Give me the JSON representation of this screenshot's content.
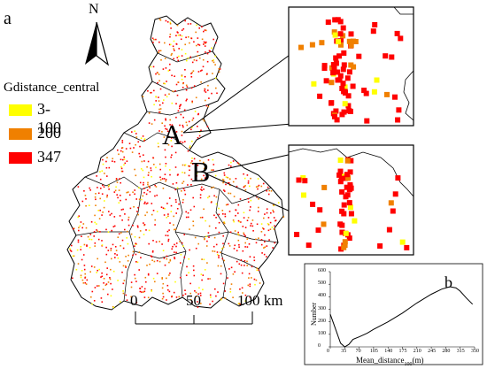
{
  "panel_a_label": "a",
  "panel_b_label": "b",
  "north_label": "N",
  "legend": {
    "title": "Gdistance_central",
    "items": [
      {
        "label": "3-100",
        "color": "#ffff00"
      },
      {
        "label": "200",
        "color": "#f08000"
      },
      {
        "label": "347",
        "color": "#ff0000"
      }
    ]
  },
  "callouts": {
    "a": "A",
    "b": "B"
  },
  "scale_bar": {
    "labels": [
      "0",
      "50",
      "100 km"
    ]
  },
  "chart_data": {
    "type": "line",
    "xlabel": "Mean_distance",
    "xlabel_subscript": "100",
    "xlabel_unit": "(m)",
    "ylabel": "Number",
    "x_ticks": [
      0,
      35,
      70,
      105,
      140,
      175,
      210,
      245,
      280,
      315,
      350
    ],
    "y_ticks": [
      0,
      100,
      200,
      300,
      400,
      500,
      600
    ],
    "xlim": [
      0,
      350
    ],
    "ylim": [
      0,
      600
    ],
    "x": [
      0,
      12,
      25,
      35,
      45,
      55,
      70,
      90,
      105,
      140,
      175,
      210,
      245,
      270,
      290,
      305,
      315,
      330,
      345
    ],
    "y": [
      260,
      150,
      30,
      0,
      20,
      60,
      80,
      110,
      140,
      200,
      270,
      350,
      420,
      460,
      480,
      470,
      445,
      390,
      340
    ],
    "color": "#000000"
  }
}
